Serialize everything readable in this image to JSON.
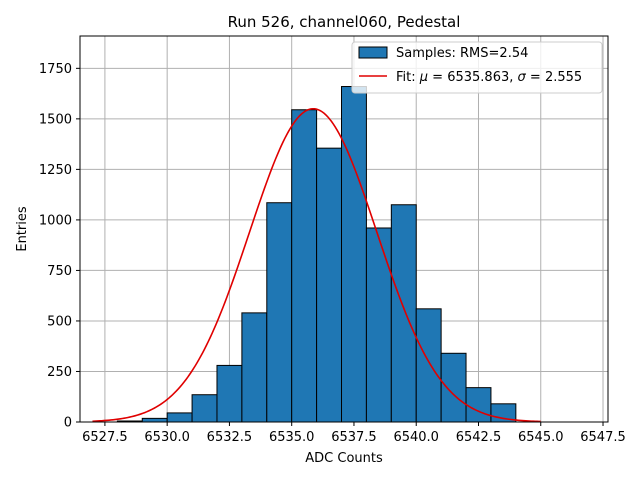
{
  "chart_data": {
    "type": "bar",
    "title": "Run 526, channel060, Pedestal",
    "xlabel": "ADC Counts",
    "ylabel": "Entries",
    "xlim": [
      6526.5,
      6547.7
    ],
    "ylim": [
      0,
      1910
    ],
    "grid": true,
    "legend_position": "top-right",
    "x_ticks": [
      6527.5,
      6530.0,
      6532.5,
      6535.0,
      6537.5,
      6540.0,
      6542.5,
      6545.0,
      6547.5
    ],
    "x_tick_labels": [
      "6527.5",
      "6530.0",
      "6532.5",
      "6535.0",
      "6537.5",
      "6540.0",
      "6542.5",
      "6545.0",
      "6547.5"
    ],
    "y_ticks": [
      0,
      250,
      500,
      750,
      1000,
      1250,
      1500,
      1750
    ],
    "y_tick_labels": [
      "0",
      "250",
      "500",
      "750",
      "1000",
      "1250",
      "1500",
      "1750"
    ],
    "histogram": {
      "name": "Samples: RMS=2.54",
      "color": "#1f77b4",
      "edge_color": "#000000",
      "bin_edges": [
        6528.0,
        6529.0,
        6530.0,
        6531.0,
        6532.0,
        6533.0,
        6534.0,
        6535.0,
        6536.0,
        6537.0,
        6538.0,
        6539.0,
        6540.0,
        6541.0,
        6542.0,
        6543.0,
        6544.0
      ],
      "values": [
        5,
        18,
        45,
        135,
        280,
        540,
        1085,
        1545,
        1355,
        1660,
        960,
        1075,
        560,
        340,
        170,
        90,
        20
      ]
    },
    "fit": {
      "name_prefix": "Fit: ",
      "mu_symbol": "μ",
      "sigma_symbol": "σ",
      "mu": 6535.863,
      "sigma": 2.555,
      "mu_label": "6535.863",
      "sigma_label": "2.555",
      "amplitude": 1550,
      "x_range": [
        6527.0,
        6545.0
      ],
      "color": "#e00000"
    }
  }
}
